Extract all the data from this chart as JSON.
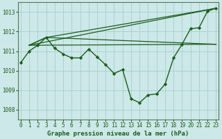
{
  "title": "Graphe pression niveau de la mer (hPa)",
  "background_color": "#cce8e8",
  "grid_color": "#aacccc",
  "line_color": "#1a5c1a",
  "ylim": [
    1007.5,
    1013.5
  ],
  "yticks": [
    1008,
    1009,
    1010,
    1011,
    1012,
    1013
  ],
  "xlim": [
    -0.3,
    23.3
  ],
  "xticks": [
    0,
    1,
    2,
    3,
    4,
    5,
    6,
    7,
    8,
    9,
    10,
    11,
    12,
    13,
    14,
    15,
    16,
    17,
    18,
    19,
    20,
    21,
    22,
    23
  ],
  "main_x": [
    0,
    1,
    2,
    3,
    4,
    5,
    6,
    7,
    8,
    9,
    10,
    11,
    12,
    13,
    14,
    15,
    16,
    17,
    18,
    19,
    20,
    21,
    22,
    23
  ],
  "main_y": [
    1010.4,
    1011.0,
    1011.3,
    1011.7,
    1011.15,
    1010.85,
    1010.65,
    1010.65,
    1011.1,
    1010.7,
    1010.3,
    1009.85,
    1010.05,
    1008.55,
    1008.35,
    1008.75,
    1008.8,
    1009.3,
    1010.65,
    1011.35,
    1012.15,
    1012.2,
    1013.05,
    1013.2
  ],
  "ref_lines": [
    {
      "x": [
        1,
        23
      ],
      "y": [
        1011.3,
        1013.2
      ]
    },
    {
      "x": [
        1,
        23
      ],
      "y": [
        1011.3,
        1011.35
      ]
    },
    {
      "x": [
        1,
        3,
        23
      ],
      "y": [
        1011.3,
        1011.7,
        1011.35
      ]
    },
    {
      "x": [
        1,
        3,
        23
      ],
      "y": [
        1011.3,
        1011.7,
        1013.2
      ]
    }
  ]
}
